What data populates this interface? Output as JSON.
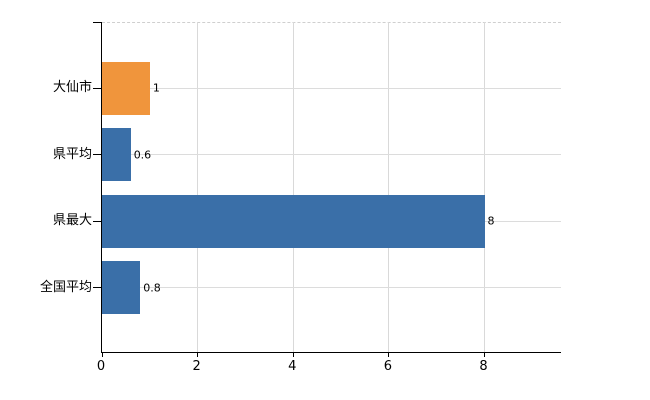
{
  "chart_data": {
    "type": "bar",
    "orientation": "horizontal",
    "title": "",
    "xlabel": "",
    "ylabel": "",
    "categories": [
      "大仙市",
      "県平均",
      "県最大",
      "全国平均"
    ],
    "values": [
      1,
      0.6,
      8,
      0.8
    ],
    "value_labels": [
      "1",
      "0.6",
      "8",
      "0.8"
    ],
    "series": [
      {
        "name": "",
        "values": [
          1,
          0.6,
          8,
          0.8
        ]
      }
    ],
    "bar_colors": [
      "#f0953c",
      "#3a6fa8",
      "#3a6fa8",
      "#3a6fa8"
    ],
    "x_ticks": [
      0,
      2,
      4,
      6,
      8
    ],
    "x_tick_labels": [
      "0",
      "2",
      "4",
      "6",
      "8"
    ],
    "xlim": [
      0,
      9.6
    ],
    "grid": true,
    "legend": false,
    "background_color": "#ffffff",
    "axis_color": "#000000",
    "grid_color": "#d9d9d9",
    "text_color": "#000000"
  }
}
